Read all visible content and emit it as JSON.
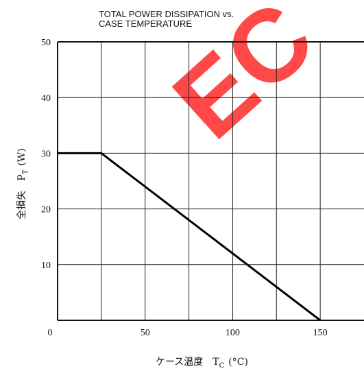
{
  "chart_data": {
    "type": "line",
    "title": "TOTAL POWER DISSIPATION vs. CASE TEMPERATURE",
    "title_lines": [
      "TOTAL POWER DISSIPATION vs.",
      "CASE TEMPERATURE"
    ],
    "xlabel": "ケース温度　T",
    "xlabel_sub": "C",
    "xlabel_unit": "(°C)",
    "ylabel": "全損失　P",
    "ylabel_sub": "T",
    "ylabel_unit": "(W)",
    "xlim": [
      0,
      175
    ],
    "ylim": [
      0,
      50
    ],
    "x_ticks": [
      0,
      50,
      100,
      150
    ],
    "x_tick_labels": [
      "0",
      "50",
      "100",
      "150"
    ],
    "y_ticks": [
      10,
      20,
      30,
      40,
      50
    ],
    "y_tick_labels": [
      "10",
      "20",
      "30",
      "40",
      "50"
    ],
    "grid_x_step": 25,
    "grid_y_step": 10,
    "grid": true,
    "series": [
      {
        "x": [
          0,
          25,
          150
        ],
        "y": [
          30,
          30,
          0
        ]
      }
    ],
    "colors": {
      "line": "#000000",
      "watermark": "#ff2a2a"
    },
    "watermark": "EC"
  }
}
